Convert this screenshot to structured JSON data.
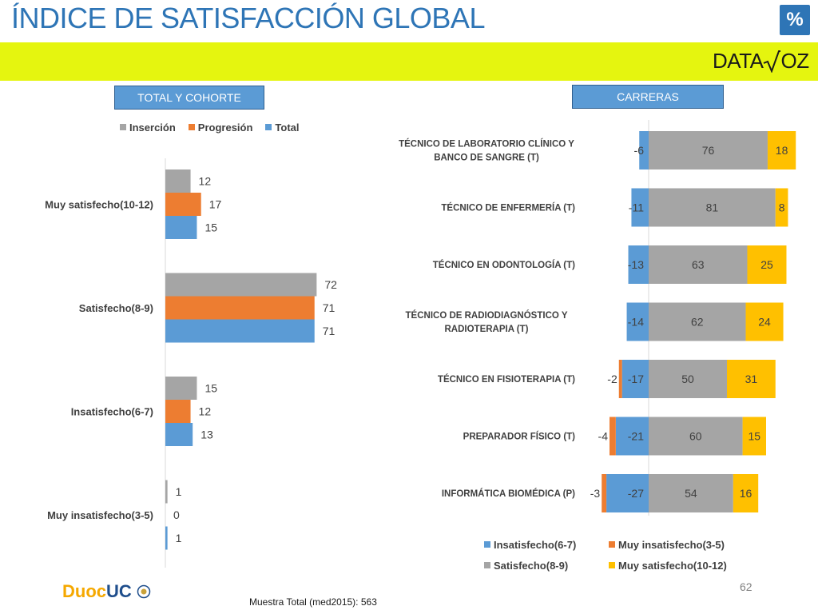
{
  "page": {
    "title": "ÍNDICE DE SATISFACCIÓN GLOBAL",
    "percent_badge": "%",
    "logo_text": "DATA",
    "logo_text_2": "OZ",
    "footer_note": "Muestra Total (med2015): 563",
    "page_number": "62",
    "duoc_logo": {
      "part1": "Duoc",
      "part2": "UC"
    },
    "colors": {
      "title": "#2e75b6",
      "band": "#e5f50f",
      "box": "#5b9bd5"
    }
  },
  "headers": {
    "left": "TOTAL Y COHORTE",
    "right": "CARRERAS"
  },
  "chart_data": [
    {
      "type": "bar",
      "orientation": "horizontal",
      "categories": [
        "Muy satisfecho(10-12)",
        "Satisfecho(8-9)",
        "Insatisfecho(6-7)",
        "Muy insatisfecho(3-5)"
      ],
      "series": [
        {
          "name": "Inserción",
          "color": "#a5a5a5",
          "values": [
            12,
            72,
            15,
            1
          ]
        },
        {
          "name": "Progresión",
          "color": "#ed7d31",
          "values": [
            17,
            71,
            12,
            0
          ]
        },
        {
          "name": "Total",
          "color": "#5b9bd5",
          "values": [
            15,
            71,
            13,
            1
          ]
        }
      ],
      "legend_position": "top",
      "data_labels": true
    },
    {
      "type": "bar",
      "orientation": "horizontal",
      "stacked": true,
      "diverging": true,
      "categories": [
        "TÉCNICO DE LABORATORIO CLÍNICO Y BANCO DE SANGRE (T)",
        "TÉCNICO DE ENFERMERÍA (T)",
        "TÉCNICO EN ODONTOLOGÍA (T)",
        "TÉCNICO DE RADIODIAGNÓSTICO Y RADIOTERAPIA (T)",
        "TÉCNICO EN FISIOTERAPIA (T)",
        "PREPARADOR FÍSICO (T)",
        "INFORMÁTICA BIOMÉDICA (P)"
      ],
      "category_lines": [
        [
          "TÉCNICO DE LABORATORIO CLÍNICO Y",
          "BANCO DE SANGRE (T)"
        ],
        [
          "TÉCNICO DE ENFERMERÍA (T)"
        ],
        [
          "TÉCNICO EN ODONTOLOGÍA (T)"
        ],
        [
          "TÉCNICO DE RADIODIAGNÓSTICO Y",
          "RADIOTERAPIA (T)"
        ],
        [
          "TÉCNICO EN FISIOTERAPIA (T)"
        ],
        [
          "PREPARADOR FÍSICO (T)"
        ],
        [
          "INFORMÁTICA BIOMÉDICA (P)"
        ]
      ],
      "series": [
        {
          "name": "Insatisfecho(6-7)",
          "color": "#5b9bd5",
          "values": [
            -6,
            -11,
            -13,
            -14,
            -17,
            -21,
            -27
          ]
        },
        {
          "name": "Muy insatisfecho(3-5)",
          "color": "#ed7d31",
          "values": [
            0,
            0,
            0,
            0,
            -2,
            -4,
            -3
          ]
        },
        {
          "name": "Satisfecho(8-9)",
          "color": "#a5a5a5",
          "values": [
            76,
            81,
            63,
            62,
            50,
            60,
            54
          ]
        },
        {
          "name": "Muy satisfecho(10-12)",
          "color": "#ffc000",
          "values": [
            18,
            8,
            25,
            24,
            31,
            15,
            16
          ]
        }
      ],
      "legend_position": "bottom",
      "data_labels": true
    }
  ]
}
